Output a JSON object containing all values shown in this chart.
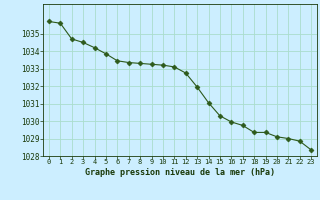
{
  "x": [
    0,
    1,
    2,
    3,
    4,
    5,
    6,
    7,
    8,
    9,
    10,
    11,
    12,
    13,
    14,
    15,
    16,
    17,
    18,
    19,
    20,
    21,
    22,
    23
  ],
  "y": [
    1035.7,
    1035.6,
    1034.7,
    1034.5,
    1034.2,
    1033.85,
    1033.45,
    1033.35,
    1033.3,
    1033.25,
    1033.2,
    1033.1,
    1032.75,
    1031.95,
    1031.05,
    1030.3,
    1029.95,
    1029.75,
    1029.35,
    1029.35,
    1029.1,
    1029.0,
    1028.85,
    1028.35
  ],
  "line_color": "#2d5a1b",
  "marker": "D",
  "marker_size": 2.5,
  "bg_color": "#cceeff",
  "grid_color": "#aaddcc",
  "xlabel": "Graphe pression niveau de la mer (hPa)",
  "xlabel_color": "#1a3a0a",
  "tick_color": "#1a3a0a",
  "ylim": [
    1028,
    1036
  ],
  "xlim": [
    -0.5,
    23.5
  ],
  "yticks": [
    1028,
    1029,
    1030,
    1031,
    1032,
    1033,
    1034,
    1035
  ],
  "xticks": [
    0,
    1,
    2,
    3,
    4,
    5,
    6,
    7,
    8,
    9,
    10,
    11,
    12,
    13,
    14,
    15,
    16,
    17,
    18,
    19,
    20,
    21,
    22,
    23
  ]
}
